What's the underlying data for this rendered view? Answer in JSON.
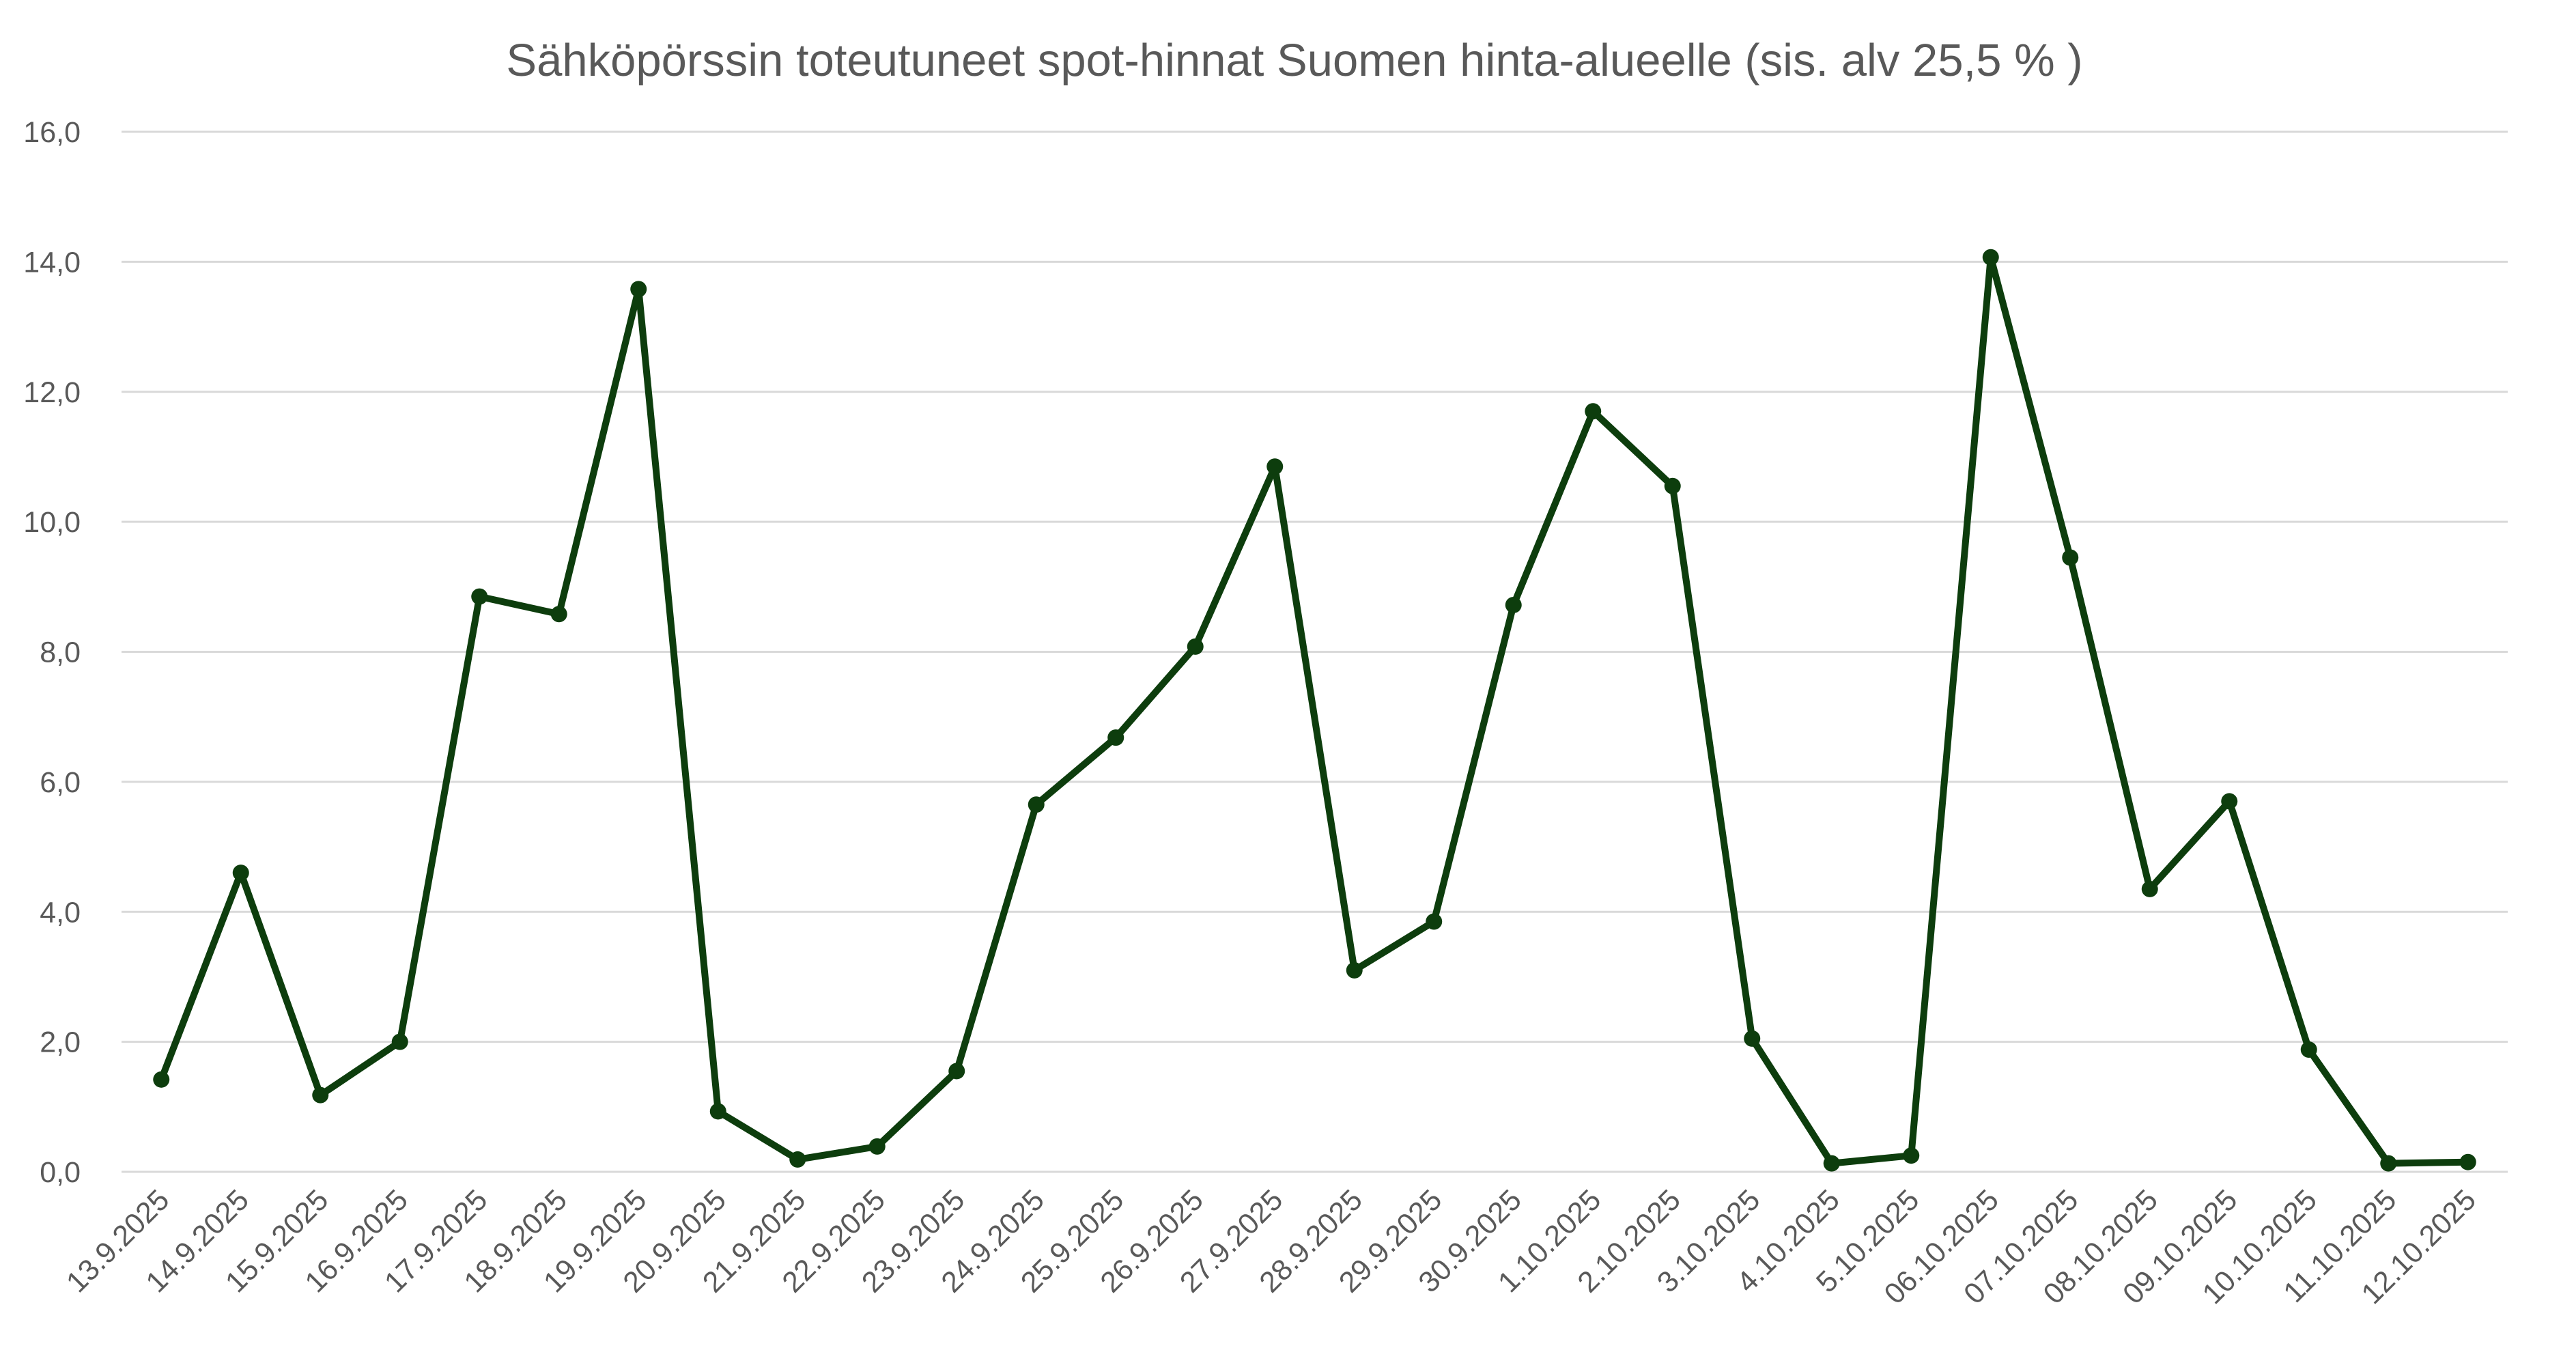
{
  "colors": {
    "series": "#0d3d0d",
    "grid": "#d9d9d9",
    "text": "#595959",
    "background": "#ffffff"
  },
  "chart_data": {
    "type": "line",
    "title": "Sähköpörssin toteutuneet spot-hinnat Suomen hinta-alueelle (sis. alv 25,5 % )",
    "xlabel": "",
    "ylabel": "",
    "ylim": [
      0,
      16
    ],
    "y_ticks": [
      "0,0",
      "2,0",
      "4,0",
      "6,0",
      "8,0",
      "10,0",
      "12,0",
      "14,0",
      "16,0"
    ],
    "grid": true,
    "legend": "none",
    "categories": [
      "13.9.2025",
      "14.9.2025",
      "15.9.2025",
      "16.9.2025",
      "17.9.2025",
      "18.9.2025",
      "19.9.2025",
      "20.9.2025",
      "21.9.2025",
      "22.9.2025",
      "23.9.2025",
      "24.9.2025",
      "25.9.2025",
      "26.9.2025",
      "27.9.2025",
      "28.9.2025",
      "29.9.2025",
      "30.9.2025",
      "1.10.2025",
      "2.10.2025",
      "3.10.2025",
      "4.10.2025",
      "5.10.2025",
      "06.10.2025",
      "07.10.2025",
      "08.10.2025",
      "09.10.2025",
      "10.10.2025",
      "11.10.2025",
      "12.10.2025"
    ],
    "values": [
      1.42,
      4.6,
      1.18,
      2.0,
      8.85,
      8.58,
      13.58,
      0.93,
      0.19,
      0.39,
      1.55,
      5.65,
      6.68,
      8.08,
      10.85,
      3.1,
      3.85,
      8.72,
      11.7,
      10.55,
      2.05,
      0.13,
      0.25,
      14.07,
      9.45,
      4.35,
      5.7,
      1.88,
      0.13,
      0.15
    ]
  }
}
